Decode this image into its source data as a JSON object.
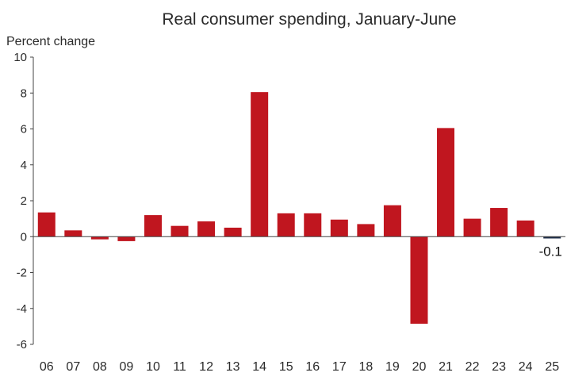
{
  "chart_data": {
    "type": "bar",
    "title": "Real consumer spending, January-June",
    "ylabel": "Percent change",
    "xlabel": "",
    "categories": [
      "06",
      "07",
      "08",
      "09",
      "10",
      "11",
      "12",
      "13",
      "14",
      "15",
      "16",
      "17",
      "18",
      "19",
      "20",
      "21",
      "22",
      "23",
      "24",
      "25"
    ],
    "values": [
      1.35,
      0.35,
      -0.15,
      -0.25,
      1.2,
      0.6,
      0.85,
      0.5,
      8.05,
      1.3,
      1.3,
      0.95,
      0.7,
      1.75,
      -4.85,
      6.05,
      1.0,
      1.6,
      0.9,
      -0.1
    ],
    "ylim": [
      -6,
      10
    ],
    "yticks": [
      "10",
      "8",
      "6",
      "4",
      "2",
      "0",
      "-2",
      "-4",
      "-6"
    ],
    "grid": false,
    "bar_color": "#c0161f",
    "last_bar_color": "#1f2f4a",
    "annotation": {
      "category": "25",
      "text": "-0.1"
    }
  }
}
